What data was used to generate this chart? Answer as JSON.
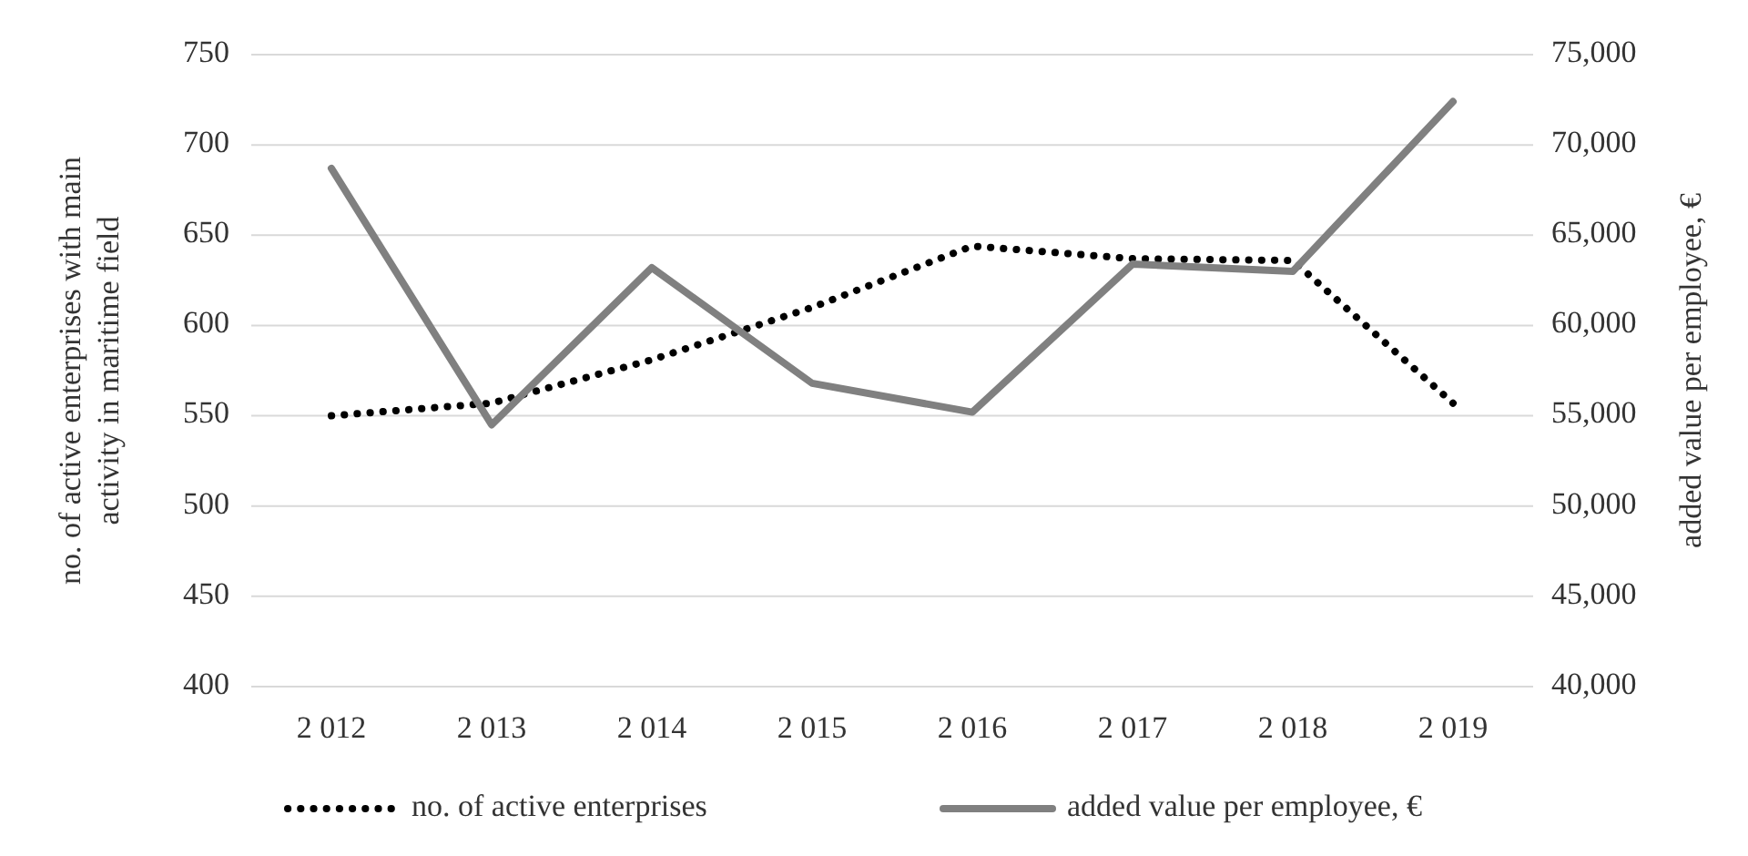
{
  "chart_data": {
    "type": "line",
    "categories": [
      "2 012",
      "2 013",
      "2 014",
      "2 015",
      "2 016",
      "2 017",
      "2 018",
      "2 019"
    ],
    "ylabel": "no. of active enterprises with main activity in maritime field",
    "y2label": "added value per employee, €",
    "ylim": [
      400,
      750
    ],
    "yticks": [
      400,
      450,
      500,
      550,
      600,
      650,
      700,
      750
    ],
    "y2lim": [
      40000,
      75000
    ],
    "y2ticks": [
      {
        "value": 40000,
        "label": "40,000"
      },
      {
        "value": 45000,
        "label": "45,000"
      },
      {
        "value": 50000,
        "label": "50,000"
      },
      {
        "value": 55000,
        "label": "55,000"
      },
      {
        "value": 60000,
        "label": "60,000"
      },
      {
        "value": 65000,
        "label": "65,000"
      },
      {
        "value": 70000,
        "label": "70,000"
      },
      {
        "value": 75000,
        "label": "75,000"
      }
    ],
    "grid": "y",
    "legend": "bottom",
    "series": [
      {
        "name": "no. of active enterprises",
        "color": "#000000",
        "line_style": "dotted",
        "values": [
          550,
          557,
          581,
          610,
          644,
          637,
          636,
          557
        ]
      },
      {
        "name": "added value per employee, €",
        "color": "#808080",
        "line_style": "solid",
        "axis": "y2",
        "values": [
          68700,
          54500,
          63200,
          56800,
          55200,
          63400,
          63000,
          72400
        ]
      }
    ]
  }
}
